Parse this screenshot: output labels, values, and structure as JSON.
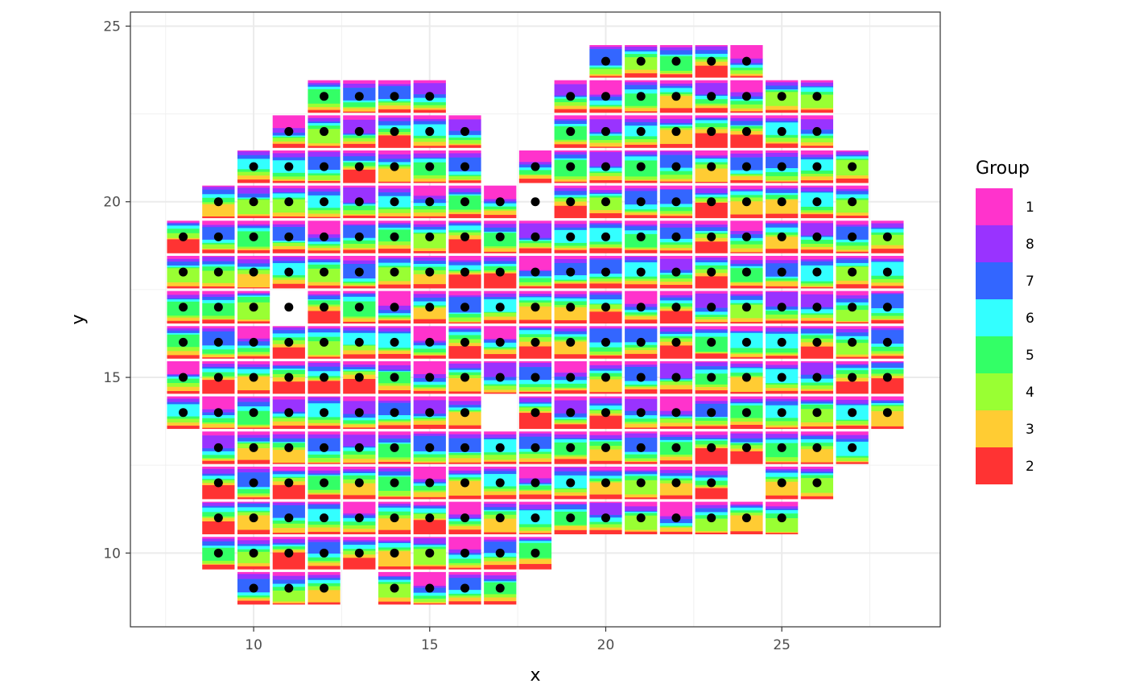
{
  "chart_data": {
    "type": "heatmap",
    "title": "",
    "xlabel": "x",
    "ylabel": "y",
    "xlim": [
      6.5,
      29.5
    ],
    "ylim": [
      7.9,
      25.4
    ],
    "x_ticks": [
      10,
      15,
      20,
      25
    ],
    "y_ticks": [
      10,
      15,
      20,
      25
    ],
    "grid": true,
    "legend": {
      "title": "Group",
      "placement": "right",
      "entries": [
        {
          "label": "1",
          "color": "#ff33cc"
        },
        {
          "label": "8",
          "color": "#9933ff"
        },
        {
          "label": "7",
          "color": "#3366ff"
        },
        {
          "label": "6",
          "color": "#33ffff"
        },
        {
          "label": "5",
          "color": "#33ff66"
        },
        {
          "label": "4",
          "color": "#99ff33"
        },
        {
          "label": "3",
          "color": "#ffcc33"
        },
        {
          "label": "2",
          "color": "#ff3333"
        }
      ]
    },
    "stack_order": [
      "1",
      "8",
      "7",
      "6",
      "5",
      "4",
      "3",
      "2"
    ],
    "rows": [
      {
        "y": 24,
        "x": [
          20,
          21,
          22,
          23,
          24
        ]
      },
      {
        "y": 23,
        "x": [
          12,
          13,
          14,
          15,
          19,
          20,
          21,
          22,
          23,
          24,
          25,
          26
        ]
      },
      {
        "y": 22,
        "x": [
          11,
          12,
          13,
          14,
          15,
          16,
          19,
          20,
          21,
          22,
          23,
          24,
          25,
          26
        ]
      },
      {
        "y": 21,
        "x": [
          10,
          11,
          12,
          13,
          14,
          15,
          16,
          18,
          19,
          20,
          21,
          22,
          23,
          24,
          25,
          26,
          27
        ]
      },
      {
        "y": 20,
        "x": [
          9,
          10,
          11,
          12,
          13,
          14,
          15,
          16,
          17,
          19,
          20,
          21,
          22,
          23,
          24,
          25,
          26,
          27
        ]
      },
      {
        "y": 19,
        "x": [
          8,
          9,
          10,
          11,
          12,
          13,
          14,
          15,
          16,
          17,
          18,
          19,
          20,
          21,
          22,
          23,
          24,
          25,
          26,
          27,
          28
        ]
      },
      {
        "y": 18,
        "x": [
          8,
          9,
          10,
          11,
          12,
          13,
          14,
          15,
          16,
          17,
          18,
          19,
          20,
          21,
          22,
          23,
          24,
          25,
          26,
          27,
          28
        ]
      },
      {
        "y": 17,
        "x": [
          8,
          9,
          10,
          12,
          13,
          14,
          15,
          16,
          17,
          18,
          19,
          20,
          21,
          22,
          23,
          24,
          25,
          26,
          27,
          28
        ]
      },
      {
        "y": 16,
        "x": [
          8,
          9,
          10,
          11,
          12,
          13,
          14,
          15,
          16,
          17,
          18,
          19,
          20,
          21,
          22,
          23,
          24,
          25,
          26,
          27,
          28
        ]
      },
      {
        "y": 15,
        "x": [
          8,
          9,
          10,
          11,
          12,
          13,
          14,
          15,
          16,
          17,
          18,
          19,
          20,
          21,
          22,
          23,
          24,
          25,
          26,
          27,
          28
        ]
      },
      {
        "y": 14,
        "x": [
          8,
          9,
          10,
          11,
          12,
          13,
          14,
          15,
          16,
          18,
          19,
          20,
          21,
          22,
          23,
          24,
          25,
          26,
          27,
          28
        ]
      },
      {
        "y": 13,
        "x": [
          9,
          10,
          11,
          12,
          13,
          14,
          15,
          16,
          17,
          18,
          19,
          20,
          21,
          22,
          23,
          24,
          25,
          26,
          27
        ]
      },
      {
        "y": 12,
        "x": [
          9,
          10,
          11,
          12,
          13,
          14,
          15,
          16,
          17,
          18,
          19,
          20,
          21,
          22,
          23,
          25,
          26
        ]
      },
      {
        "y": 11,
        "x": [
          9,
          10,
          11,
          12,
          13,
          14,
          15,
          16,
          17,
          18,
          19,
          20,
          21,
          22,
          23,
          24,
          25
        ]
      },
      {
        "y": 10,
        "x": [
          9,
          10,
          11,
          12,
          13,
          14,
          15,
          16,
          17,
          18
        ]
      },
      {
        "y": 9,
        "x": [
          10,
          11,
          12,
          14,
          15,
          16,
          17
        ]
      }
    ],
    "empty_points": [
      [
        18,
        20
      ],
      [
        11,
        17
      ]
    ]
  }
}
